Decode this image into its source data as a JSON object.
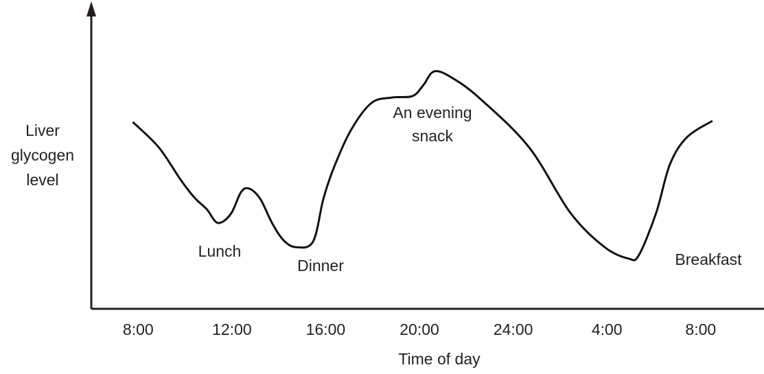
{
  "chart_data": {
    "type": "line",
    "x_label": "Time of day",
    "y_label": [
      "Liver",
      "glycogen",
      "level"
    ],
    "xlim": [
      6,
      34.7
    ],
    "xticks": [
      {
        "value": 8,
        "label": "8:00"
      },
      {
        "value": 12,
        "label": "12:00"
      },
      {
        "value": 16,
        "label": "16:00"
      },
      {
        "value": 20,
        "label": "20:00"
      },
      {
        "value": 24,
        "label": "24:00"
      },
      {
        "value": 28,
        "label": "4:00"
      },
      {
        "value": 32,
        "label": "8:00"
      }
    ],
    "ylim": [
      0,
      10
    ],
    "series": [
      {
        "color": "#111111",
        "x": [
          7.77,
          8.88,
          9.81,
          10.4,
          10.93,
          11.4,
          11.95,
          12.39,
          12.74,
          13.21,
          13.71,
          14.2,
          14.73,
          15.46,
          15.9,
          16.34,
          17.07,
          17.95,
          18.83,
          19.7,
          20.15,
          20.64,
          21.46,
          22.63,
          24.68,
          26.44,
          27.9,
          28.93,
          29.36,
          30.1,
          30.68,
          31.41,
          32.5
        ],
        "values": [
          6.48,
          5.6,
          4.48,
          3.86,
          3.45,
          2.98,
          3.29,
          4.05,
          4.17,
          3.81,
          2.98,
          2.38,
          2.14,
          2.33,
          3.81,
          4.88,
          6.19,
          7.14,
          7.33,
          7.38,
          7.74,
          8.24,
          7.98,
          7.26,
          5.6,
          3.33,
          2.14,
          1.74,
          1.86,
          3.33,
          5.0,
          5.95,
          6.52
        ]
      }
    ],
    "annotations": [
      {
        "text": [
          "Lunch"
        ]
      },
      {
        "text": [
          "Dinner"
        ]
      },
      {
        "text": [
          "An evening",
          "snack"
        ]
      },
      {
        "text": [
          "Breakfast"
        ]
      }
    ]
  }
}
